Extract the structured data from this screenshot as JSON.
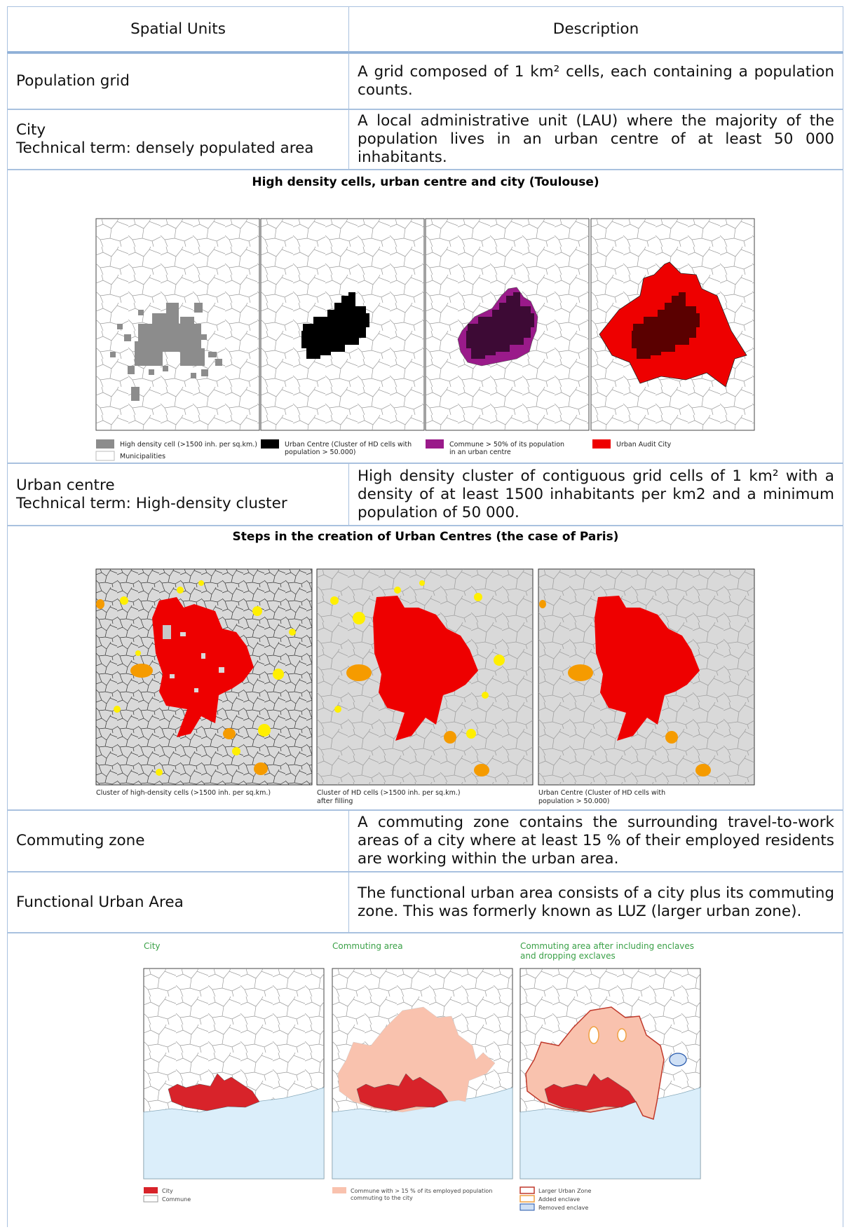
{
  "table": {
    "header": [
      "Spatial Units",
      "Description"
    ],
    "rows": [
      {
        "unit": [
          "Population grid"
        ],
        "description": "A grid composed of 1 km² cells, each containing a population counts."
      },
      {
        "unit": [
          "City",
          "Technical term: densely populated area"
        ],
        "description": "A local administrative unit (LAU) where the majority of the population lives in an urban centre of at least 50 000 inhabitants."
      },
      {
        "unit": [
          "Urban centre",
          "Technical term: High-density cluster"
        ],
        "description": "High density cluster of contiguous grid cells of 1 km² with a density of at least 1500 inhabitants per km2 and a minimum population of 50 000."
      },
      {
        "unit": [
          "Commuting zone"
        ],
        "description": "A commuting zone contains the surrounding travel-to-work areas of a city where at least 15 % of their employed residents are working within the urban area."
      },
      {
        "unit": [
          "Functional Urban Area"
        ],
        "description": "The functional urban area consists of a city plus its commuting zone. This was formerly known as LUZ (larger urban zone)."
      }
    ]
  },
  "figures": [
    {
      "title": "High density cells, urban centre and city (Toulouse)",
      "legend": [
        "High density cell (>1500 inh. per sq.km.)",
        "Municipalities",
        "Urban Centre (Cluster of HD cells with",
        "population > 50.000)",
        "Commune > 50% of its population",
        "in an urban centre",
        "Urban Audit City"
      ]
    },
    {
      "title": "Steps in the creation of Urban Centres (the case of Paris)",
      "captions": [
        "Cluster of high-density cells (>1500 inh. per sq.km.)",
        "Cluster of HD cells (>1500 inh. per sq.km.)",
        "after filling",
        "Urban Centre (Cluster of HD cells with",
        "population > 50.000)"
      ]
    },
    {
      "panel_titles": [
        "City",
        "Commuting area",
        "Commuting area after including enclaves",
        "and dropping exclaves"
      ],
      "legend": [
        "City",
        "Commune",
        "Commune with > 15 % of its employed population",
        "commuting to the city",
        "Larger Urban Zone",
        "Added enclave",
        "Removed enclave"
      ]
    }
  ]
}
